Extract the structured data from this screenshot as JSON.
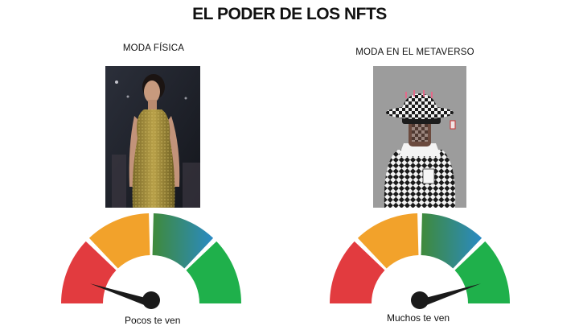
{
  "title": "EL PODER DE LOS NFTS",
  "left": {
    "label": "MODA FÍSICA",
    "caption": "Pocos te ven",
    "needle_fraction": 0.1
  },
  "right": {
    "label": "MODA EN EL METAVERSO",
    "caption": "Muchos te ven",
    "needle_fraction": 0.9
  },
  "colors": {
    "red": "#e23b3f",
    "orange": "#f2a22b",
    "teal_blue": "#2a8ac4",
    "green": "#1fb04b",
    "needle": "#1a1a1a"
  }
}
